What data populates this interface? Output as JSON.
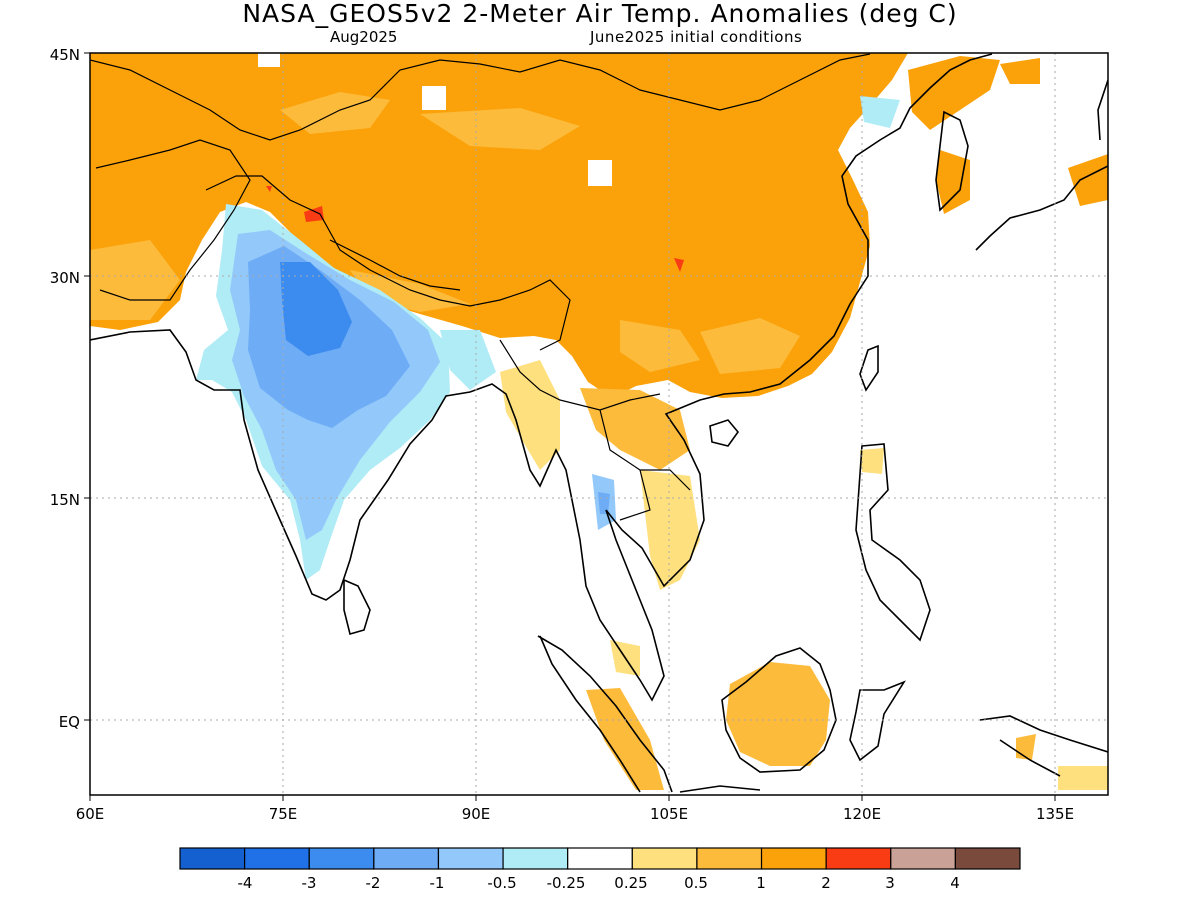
{
  "header": {
    "title": "NASA_GEOS5v2 2-Meter Air Temp. Anomalies (deg C)",
    "forecast_month": "Aug2025",
    "initial_conditions": "June2025 initial conditions"
  },
  "axes": {
    "lat_ticks": [
      "45N",
      "30N",
      "15N",
      "EQ"
    ],
    "lon_ticks": [
      "60E",
      "75E",
      "90E",
      "105E",
      "120E",
      "135E"
    ],
    "lat_range": [
      -5,
      45
    ],
    "lon_range": [
      60,
      139
    ]
  },
  "colorbar": {
    "colors": [
      "#1560d0",
      "#2070e8",
      "#3c8cf0",
      "#6eacf6",
      "#92c8fa",
      "#b0ecf6",
      "#ffffff",
      "#fee07e",
      "#fdbb3c",
      "#fba20a",
      "#fa3c14",
      "#c9a196",
      "#7a4a3c"
    ],
    "labels": [
      "-4",
      "-3",
      "-2",
      "-1",
      "-0.5",
      "-0.25",
      "0.25",
      "0.5",
      "1",
      "2",
      "3",
      "4"
    ]
  },
  "map": {
    "colors": {
      "strong_warm": "#fba20a",
      "warm": "#fdbb3c",
      "mild_warm": "#fee07e",
      "hot": "#fa3c14",
      "mild_cool": "#b0ecf6",
      "cool": "#92c8fa",
      "cooler": "#6eacf6",
      "coolest": "#3c8cf0"
    }
  }
}
